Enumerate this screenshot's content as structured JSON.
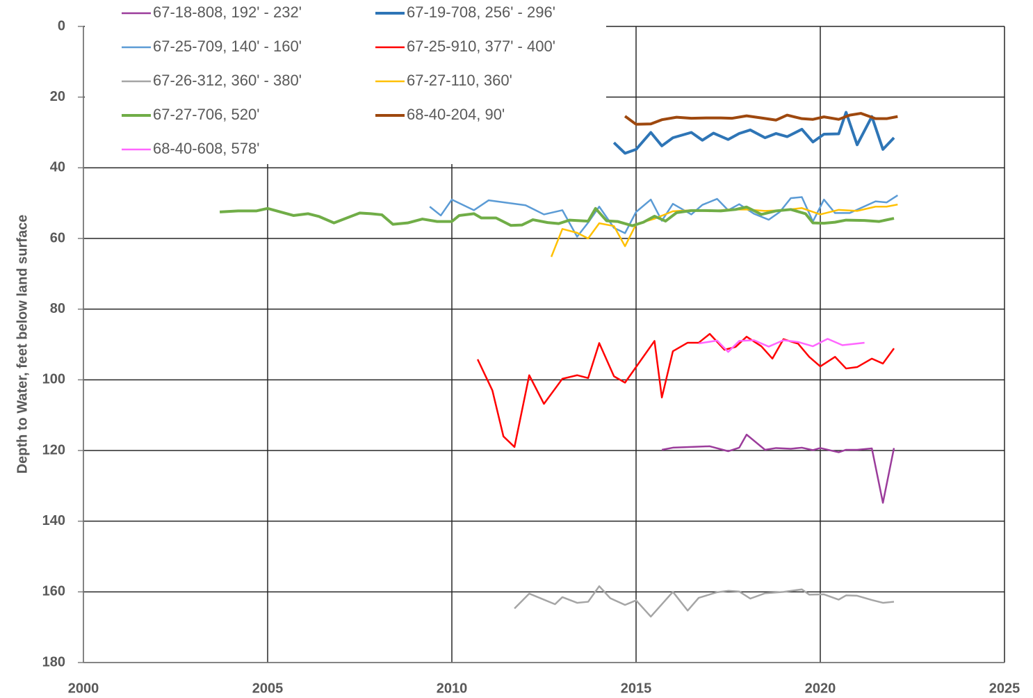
{
  "chart_data": {
    "type": "line",
    "y_label": "Depth to Water, feet below land surface",
    "xlim": [
      2000,
      2025
    ],
    "xticks": [
      2000,
      2005,
      2010,
      2015,
      2020,
      2025
    ],
    "ylim": [
      0,
      180
    ],
    "yticks": [
      0,
      20,
      40,
      60,
      80,
      100,
      120,
      140,
      160,
      180
    ],
    "y_inverted": true,
    "grid": true,
    "legend": "top-left",
    "series": [
      {
        "name": "67-18-808, 192' - 232'",
        "color": "#9b3c9b",
        "line_width": 2.5,
        "x": [
          2015.7,
          2016,
          2016.5,
          2017,
          2017.5,
          2017.8,
          2018,
          2018.5,
          2018.8,
          2019.2,
          2019.5,
          2019.8,
          2020,
          2020.5,
          2020.7,
          2021,
          2021.4,
          2021.7,
          2022
        ],
        "values": [
          119.8,
          119.2,
          119,
          118.8,
          120.2,
          119.2,
          115.5,
          119.8,
          119.3,
          119.5,
          119.2,
          119.9,
          119.3,
          120.5,
          119.8,
          119.8,
          119.4,
          134.8,
          119.3
        ]
      },
      {
        "name": "67-19-708, 256' - 296'",
        "color": "#2e75b6",
        "line_width": 4,
        "x": [
          2014.4,
          2014.7,
          2015,
          2015.4,
          2015.7,
          2016,
          2016.5,
          2016.8,
          2017.1,
          2017.5,
          2017.8,
          2018.1,
          2018.5,
          2018.8,
          2019.1,
          2019.5,
          2019.8,
          2020.1,
          2020.5,
          2020.7,
          2021,
          2021.4,
          2021.7,
          2022
        ],
        "values": [
          32.9,
          35.9,
          34.8,
          30,
          33.8,
          31.5,
          30,
          32.2,
          30.2,
          32,
          30.3,
          29.3,
          31.5,
          30.3,
          31.2,
          29.1,
          32.7,
          30.5,
          30.4,
          24.3,
          33.5,
          25.5,
          34.8,
          31.5
        ]
      },
      {
        "name": "67-25-709, 140' - 160'",
        "color": "#5b9bd5",
        "line_width": 2.5,
        "x": [
          2009.4,
          2009.7,
          2010,
          2010.6,
          2011,
          2012,
          2012.5,
          2013,
          2013.4,
          2013.7,
          2014,
          2014.4,
          2014.7,
          2015,
          2015.4,
          2015.7,
          2016,
          2016.5,
          2016.8,
          2017.2,
          2017.5,
          2017.8,
          2018.2,
          2018.6,
          2018.9,
          2019.2,
          2019.5,
          2019.8,
          2020.1,
          2020.4,
          2020.8,
          2021.5,
          2021.8,
          2022.1
        ],
        "values": [
          51,
          53.5,
          49,
          52,
          49.2,
          50.6,
          53.2,
          52,
          59.5,
          55.5,
          51,
          57,
          58.5,
          52.5,
          49,
          55,
          50.2,
          53.2,
          50.5,
          48.8,
          52,
          50.3,
          53,
          54.7,
          52.5,
          48.6,
          48.3,
          55.2,
          49,
          52.8,
          52.8,
          49.5,
          49.8,
          47.8
        ]
      },
      {
        "name": "67-25-910, 377' - 400'",
        "color": "#ff0000",
        "line_width": 2.5,
        "x": [
          2010.7,
          2011.1,
          2011.4,
          2011.7,
          2012.1,
          2012.5,
          2013,
          2013.4,
          2013.7,
          2014,
          2014.4,
          2014.7,
          2015.5,
          2015.7,
          2016,
          2016.4,
          2016.7,
          2017,
          2017.4,
          2017.7,
          2018,
          2018.4,
          2018.7,
          2019,
          2019.4,
          2019.7,
          2020,
          2020.4,
          2020.7,
          2021,
          2021.4,
          2021.7,
          2022
        ],
        "values": [
          94.2,
          103,
          116,
          119,
          98.7,
          106.8,
          99.7,
          98.7,
          99.5,
          89.6,
          99,
          100.8,
          89,
          105,
          91.9,
          89.5,
          89.5,
          87,
          91.5,
          90.7,
          87.8,
          90.5,
          94,
          88.5,
          89.8,
          93.5,
          96.2,
          93.5,
          96.8,
          96.4,
          94,
          95.4,
          91.1
        ]
      },
      {
        "name": "67-26-312, 360' - 380'",
        "color": "#a5a5a5",
        "line_width": 2.5,
        "x": [
          2011.7,
          2012.1,
          2012.8,
          2013,
          2013.4,
          2013.7,
          2014,
          2014.3,
          2014.7,
          2015,
          2015.4,
          2016,
          2016.4,
          2016.7,
          2017.2,
          2017.5,
          2017.8,
          2018.1,
          2018.5,
          2019,
          2019.5,
          2019.7,
          2020.1,
          2020.5,
          2020.7,
          2021,
          2021.4,
          2021.7,
          2022
        ],
        "values": [
          164.7,
          160.5,
          163.5,
          161.5,
          163.1,
          162.8,
          158.4,
          161.8,
          163.7,
          162.4,
          167,
          160,
          165.3,
          161.7,
          160.1,
          159.7,
          159.9,
          161.9,
          160.4,
          160,
          159.3,
          160.8,
          160.7,
          162.2,
          161,
          161.1,
          162.3,
          163.1,
          162.8
        ]
      },
      {
        "name": "67-27-110, 360'",
        "color": "#ffc000",
        "line_width": 2.5,
        "x": [
          2012.7,
          2013,
          2013.4,
          2013.7,
          2014,
          2014.4,
          2014.7,
          2015,
          2015.5,
          2016,
          2016.5,
          2017,
          2017.5,
          2018,
          2018.5,
          2019,
          2019.5,
          2020,
          2020.5,
          2021,
          2021.5,
          2021.8,
          2022.1
        ],
        "values": [
          65.2,
          57.3,
          58.4,
          60,
          55.7,
          56.5,
          62.2,
          56,
          54.4,
          52.3,
          52,
          52.3,
          51.8,
          51.8,
          52.2,
          52,
          51.4,
          53.2,
          51.9,
          52.2,
          51,
          51,
          50.4
        ]
      },
      {
        "name": "67-27-706, 520'",
        "color": "#70ad47",
        "line_width": 4,
        "x": [
          2003.7,
          2004.2,
          2004.7,
          2005,
          2005.7,
          2006.1,
          2006.4,
          2006.8,
          2007.5,
          2007.8,
          2008.1,
          2008.4,
          2008.8,
          2009.2,
          2009.6,
          2010,
          2010.2,
          2010.6,
          2010.8,
          2011.2,
          2011.6,
          2011.9,
          2012.2,
          2012.6,
          2012.9,
          2013.2,
          2013.7,
          2013.9,
          2014.2,
          2014.5,
          2014.9,
          2015.2,
          2015.5,
          2015.8,
          2016.1,
          2016.5,
          2016.9,
          2017.3,
          2017.7,
          2018,
          2018.4,
          2018.8,
          2019.2,
          2019.6,
          2019.8,
          2020.1,
          2020.4,
          2020.7,
          2021.2,
          2021.6,
          2022
        ],
        "values": [
          52.5,
          52.2,
          52.2,
          51.5,
          53.5,
          53,
          53.8,
          55.6,
          52.8,
          53,
          53.3,
          56,
          55.6,
          54.5,
          55.2,
          55.2,
          53.5,
          53,
          54.2,
          54.2,
          56.3,
          56.2,
          54.7,
          55.5,
          55.8,
          54.8,
          55.1,
          51.5,
          55,
          55.2,
          56.4,
          55.4,
          53.7,
          55.1,
          52.7,
          52.1,
          52.1,
          52.2,
          51.8,
          51.1,
          53.2,
          52.2,
          51.8,
          53,
          55.6,
          55.7,
          55.4,
          54.8,
          54.9,
          55.2,
          54.3
        ]
      },
      {
        "name": "68-40-204, 90'",
        "color": "#9e480e",
        "line_width": 4,
        "x": [
          2014.7,
          2015,
          2015.4,
          2015.7,
          2016.1,
          2016.5,
          2016.9,
          2017.3,
          2017.6,
          2018,
          2018.4,
          2018.8,
          2019.1,
          2019.5,
          2019.8,
          2020.1,
          2020.5,
          2020.8,
          2021.1,
          2021.5,
          2021.8,
          2022.1
        ],
        "values": [
          25.4,
          27.7,
          27.6,
          26.4,
          25.7,
          26,
          25.9,
          25.9,
          26,
          25.3,
          25.9,
          26.5,
          25.1,
          26.1,
          26.3,
          25.6,
          26.3,
          25.1,
          24.6,
          26.1,
          26.1,
          25.5
        ]
      },
      {
        "name": "68-40-608, 578'",
        "color": "#ff66ff",
        "line_width": 2.5,
        "x": [
          2016.7,
          2017.2,
          2017.5,
          2017.8,
          2018.2,
          2018.6,
          2019,
          2019.4,
          2019.8,
          2020.2,
          2020.6,
          2021.2
        ],
        "values": [
          89.7,
          88.9,
          92.1,
          89,
          88.8,
          90.6,
          88.8,
          89.3,
          90.5,
          88.4,
          90.2,
          89.5
        ]
      }
    ]
  }
}
